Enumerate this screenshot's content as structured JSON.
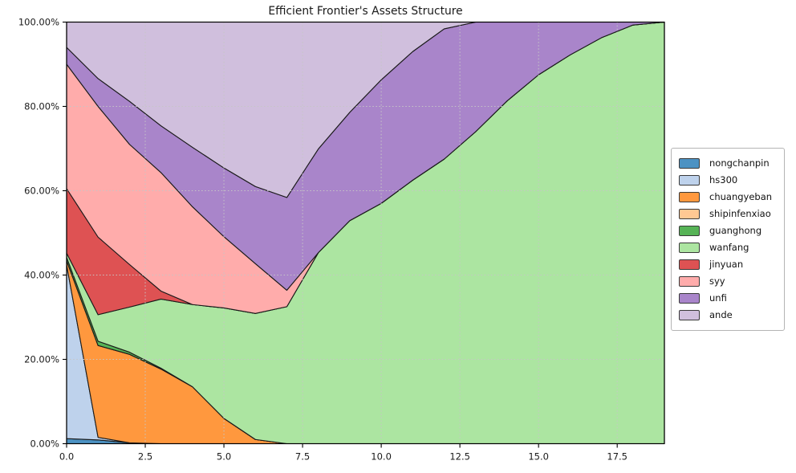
{
  "chart_data": {
    "type": "area",
    "stacked": true,
    "title": "Efficient Frontier's Assets Structure",
    "x": [
      0,
      1,
      2,
      3,
      4,
      5,
      6,
      7,
      8,
      9,
      10,
      11,
      12,
      13,
      14,
      15,
      16,
      17,
      18,
      19
    ],
    "xlim": [
      0,
      19
    ],
    "ylim": [
      0,
      100
    ],
    "unit": "percent of portfolio",
    "grid": "dotted both axes",
    "legend_position": "outside center-right",
    "x_ticks": [
      0,
      2.5,
      5,
      7.5,
      10,
      12.5,
      15,
      17.5
    ],
    "x_tick_labels": [
      "0.0",
      "2.5",
      "5.0",
      "7.5",
      "10.0",
      "12.5",
      "15.0",
      "17.5"
    ],
    "y_ticks": [
      0,
      20,
      40,
      60,
      80,
      100
    ],
    "y_tick_labels": [
      "0.00%",
      "20.00%",
      "40.00%",
      "60.00%",
      "80.00%",
      "100.00%"
    ],
    "edge_color": "#1a1a1a",
    "series": [
      {
        "name": "nongchanpin",
        "color": "#4C92C3",
        "values": [
          1.2,
          0.9,
          0.2,
          0,
          0,
          0,
          0,
          0,
          0,
          0,
          0,
          0,
          0,
          0,
          0,
          0,
          0,
          0,
          0,
          0
        ]
      },
      {
        "name": "hs300",
        "color": "#BED2EC",
        "values": [
          41.2,
          0.6,
          0,
          0,
          0,
          0,
          0,
          0,
          0,
          0,
          0,
          0,
          0,
          0,
          0,
          0,
          0,
          0,
          0,
          0
        ]
      },
      {
        "name": "chuangyeban",
        "color": "#FF983E",
        "values": [
          1.0,
          21.8,
          21.0,
          17.7,
          13.5,
          6.0,
          1.0,
          0,
          0,
          0,
          0,
          0,
          0,
          0,
          0,
          0,
          0,
          0,
          0,
          0
        ]
      },
      {
        "name": "shipinfenxiao",
        "color": "#FFC893",
        "values": [
          0,
          0,
          0,
          0,
          0,
          0,
          0,
          0,
          0,
          0,
          0,
          0,
          0,
          0,
          0,
          0,
          0,
          0,
          0,
          0
        ]
      },
      {
        "name": "guanghong",
        "color": "#56B356",
        "values": [
          0.8,
          1.0,
          0.5,
          0.2,
          0,
          0,
          0,
          0,
          0,
          0,
          0,
          0,
          0,
          0,
          0,
          0,
          0,
          0,
          0,
          0
        ]
      },
      {
        "name": "wanfang",
        "color": "#ACE5A1",
        "values": [
          1.0,
          6.3,
          10.7,
          16.4,
          19.5,
          26.2,
          29.9,
          32.5,
          45.3,
          52.9,
          57.0,
          62.5,
          67.5,
          74.0,
          81.3,
          87.5,
          92.2,
          96.3,
          99.3,
          100
        ]
      },
      {
        "name": "jinyuan",
        "color": "#DE5253",
        "values": [
          15.3,
          18.4,
          10.1,
          1.9,
          0,
          0,
          0,
          0,
          0,
          0,
          0,
          0,
          0,
          0,
          0,
          0,
          0,
          0,
          0,
          0
        ]
      },
      {
        "name": "syy",
        "color": "#FFACAB",
        "values": [
          29.5,
          31.0,
          28.5,
          28.1,
          23.2,
          16.9,
          11.8,
          3.9,
          0,
          0,
          0,
          0,
          0,
          0,
          0,
          0,
          0,
          0,
          0,
          0
        ]
      },
      {
        "name": "unfi",
        "color": "#A985CA",
        "values": [
          4.0,
          6.6,
          10.2,
          11.1,
          14.1,
          16.3,
          18.3,
          22.0,
          24.6,
          25.7,
          29.3,
          30.5,
          30.9,
          26.0,
          18.7,
          12.5,
          7.8,
          3.7,
          0.7,
          0
        ]
      },
      {
        "name": "ande",
        "color": "#D0BFDD",
        "values": [
          6.0,
          13.4,
          18.8,
          24.6,
          29.7,
          34.6,
          39.0,
          41.6,
          30.1,
          21.4,
          13.7,
          7.0,
          1.6,
          0,
          0,
          0,
          0,
          0,
          0,
          0
        ]
      }
    ]
  }
}
